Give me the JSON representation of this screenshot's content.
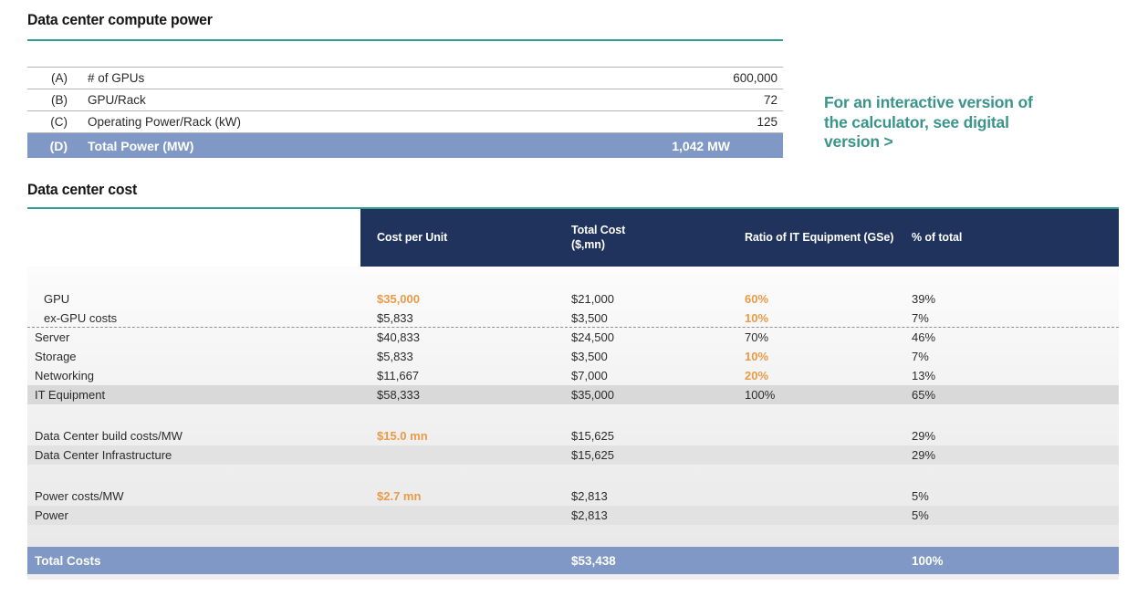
{
  "colors": {
    "teal_accent": "#2f9c8d",
    "teal_text": "#3a948a",
    "navy_header": "#20335c",
    "blue_total_row": "#8098c5",
    "orange_highlight": "#eb9a45",
    "gray_subtotal_row": "#d9d9d9"
  },
  "compute_table": {
    "title": "Data center compute power",
    "rows": [
      {
        "key": "(A)",
        "label": "# of GPUs",
        "value": "600,000"
      },
      {
        "key": "(B)",
        "label": "GPU/Rack",
        "value": "72"
      },
      {
        "key": "(C)",
        "label": "Operating Power/Rack (kW)",
        "value": "125"
      },
      {
        "key": "(D)",
        "label": "Total Power (MW)",
        "value": "1,042 MW"
      }
    ]
  },
  "side_note": {
    "text": "For an interactive version of\nthe calculator, see digital\nversion >"
  },
  "cost_table": {
    "title": "Data center cost",
    "columns": {
      "c1": "Cost per Unit",
      "c2": "Total Cost\n($,mn)",
      "c3": "Ratio of IT Equipment (GSe)",
      "c4": "% of total"
    },
    "rows": [
      {
        "label": "GPU",
        "cost_per_unit": "$35,000",
        "total_cost": "$21,000",
        "ratio": "60%",
        "pct": "39%"
      },
      {
        "label": "ex-GPU costs",
        "cost_per_unit": "$5,833",
        "total_cost": "$3,500",
        "ratio": "10%",
        "pct": "7%"
      },
      {
        "label": "Server",
        "cost_per_unit": "$40,833",
        "total_cost": "$24,500",
        "ratio": "70%",
        "pct": "46%"
      },
      {
        "label": "Storage",
        "cost_per_unit": "$5,833",
        "total_cost": "$3,500",
        "ratio": "10%",
        "pct": "7%"
      },
      {
        "label": "Networking",
        "cost_per_unit": "$11,667",
        "total_cost": "$7,000",
        "ratio": "20%",
        "pct": "13%"
      },
      {
        "label": "IT Equipment",
        "cost_per_unit": "$58,333",
        "total_cost": "$35,000",
        "ratio": "100%",
        "pct": "65%"
      },
      {
        "label": "Data Center build costs/MW",
        "cost_per_unit": "$15.0 mn",
        "total_cost": "$15,625",
        "ratio": "",
        "pct": "29%"
      },
      {
        "label": "Data Center Infrastructure",
        "cost_per_unit": "",
        "total_cost": "$15,625",
        "ratio": "",
        "pct": "29%"
      },
      {
        "label": "Power costs/MW",
        "cost_per_unit": "$2.7 mn",
        "total_cost": "$2,813",
        "ratio": "",
        "pct": "5%"
      },
      {
        "label": "Power",
        "cost_per_unit": "",
        "total_cost": "$2,813",
        "ratio": "",
        "pct": "5%"
      },
      {
        "label": "Total Costs",
        "cost_per_unit": "",
        "total_cost": "$53,438",
        "ratio": "",
        "pct": "100%"
      }
    ]
  }
}
